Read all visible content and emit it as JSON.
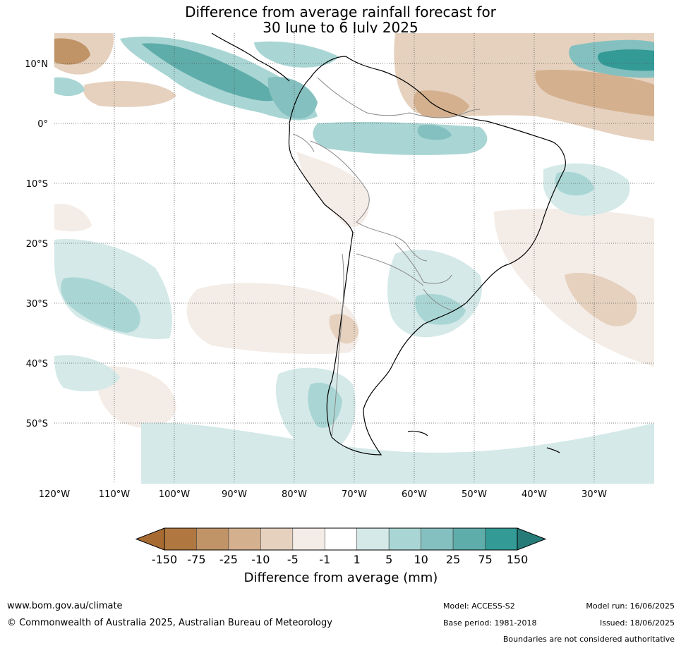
{
  "title_line1": "Difference from average rainfall forecast for",
  "title_line2": "30 June to 6 July 2025",
  "map": {
    "lon_labels": [
      "120°W",
      "110°W",
      "100°W",
      "90°W",
      "80°W",
      "70°W",
      "60°W",
      "50°W",
      "40°W",
      "30°W"
    ],
    "lat_labels": [
      "10°N",
      "0°",
      "10°S",
      "20°S",
      "30°S",
      "40°S",
      "50°S"
    ],
    "regions": [
      {
        "name": "region-north-pacific-wet",
        "category": "wet-25"
      },
      {
        "name": "region-colombia-wet",
        "category": "wet-25"
      },
      {
        "name": "region-north-atlantic-wet",
        "category": "wet-75"
      },
      {
        "name": "region-guiana-dry",
        "category": "dry-10"
      },
      {
        "name": "region-north-atlantic-dry",
        "category": "dry-25"
      },
      {
        "name": "region-amazon-mouth-wet",
        "category": "wet-10"
      },
      {
        "name": "region-brazil-east-wet",
        "category": "wet-5"
      },
      {
        "name": "region-uruguay-wet",
        "category": "wet-10"
      },
      {
        "name": "region-patagonia-wet",
        "category": "wet-5"
      },
      {
        "name": "region-south-pacific-wet",
        "category": "wet-10"
      },
      {
        "name": "region-south-atlantic-wet",
        "category": "wet-1"
      },
      {
        "name": "region-central-chile-dry",
        "category": "dry-5"
      },
      {
        "name": "region-peru-dry",
        "category": "dry-1"
      },
      {
        "name": "region-south-atlantic-dry",
        "category": "dry-5"
      }
    ]
  },
  "colorbar": {
    "title": "Difference from average (mm)",
    "labels": [
      "-150",
      "-75",
      "-25",
      "-10",
      "-5",
      "-1",
      "1",
      "5",
      "10",
      "25",
      "75",
      "150"
    ],
    "colors": [
      "#a76b32",
      "#b07840",
      "#c09467",
      "#d4b08e",
      "#e5d1be",
      "#f4ede7",
      "#ffffff",
      "#d4e9e8",
      "#a9d6d4",
      "#84c0bf",
      "#5fadab",
      "#339a96",
      "#267a77"
    ]
  },
  "footer": {
    "url": "www.bom.gov.au/climate",
    "copyright": "© Commonwealth of Australia 2025, Australian Bureau of Meteorology",
    "model": "Model: ACCESS-S2",
    "base_period": "Base period: 1981-2018",
    "model_run": "Model run: 16/06/2025",
    "issued": "Issued: 18/06/2025",
    "disclaimer": "Boundaries are not considered authoritative"
  }
}
